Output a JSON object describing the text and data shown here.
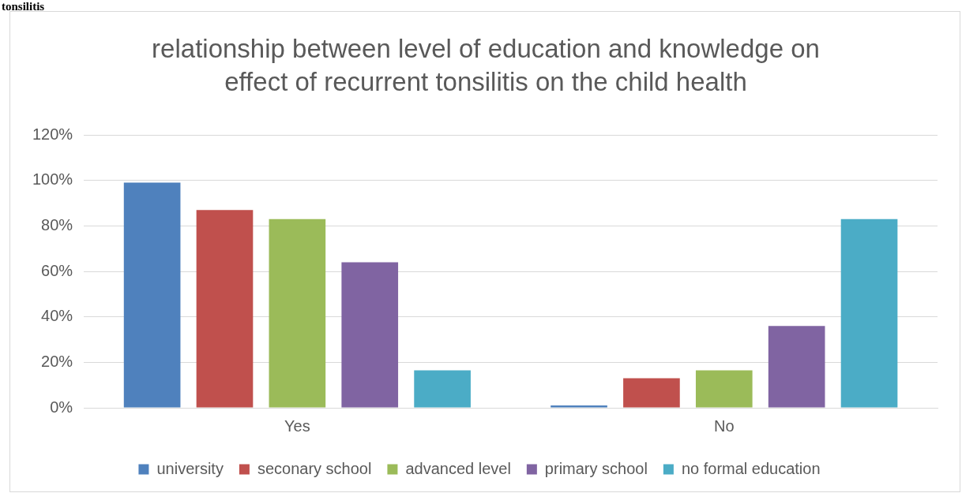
{
  "chart_data": {
    "type": "bar",
    "title": "relationship between level of education and knowledge on effect of recurrent tonsilitis on the child health",
    "annotations": [
      "tonsilitis"
    ],
    "categories": [
      "Yes",
      "No"
    ],
    "series": [
      {
        "name": "university",
        "color": "#4f81bd",
        "values": [
          99,
          1
        ]
      },
      {
        "name": "seconary school",
        "color": "#c0504d",
        "values": [
          87,
          13
        ]
      },
      {
        "name": "advanced level",
        "color": "#9bbb59",
        "values": [
          83,
          16.5
        ]
      },
      {
        "name": "primary school",
        "color": "#8064a2",
        "values": [
          64,
          36
        ]
      },
      {
        "name": "no formal education",
        "color": "#4bacc6",
        "values": [
          16.5,
          83
        ]
      }
    ],
    "ylim": [
      0,
      120
    ],
    "yticks": [
      {
        "value": 0,
        "label": "0%"
      },
      {
        "value": 20,
        "label": "20%"
      },
      {
        "value": 40,
        "label": "40%"
      },
      {
        "value": 60,
        "label": "60%"
      },
      {
        "value": 80,
        "label": "80%"
      },
      {
        "value": 100,
        "label": "100%"
      },
      {
        "value": 120,
        "label": "120%"
      }
    ],
    "grid": "y",
    "legend": "bottom"
  }
}
